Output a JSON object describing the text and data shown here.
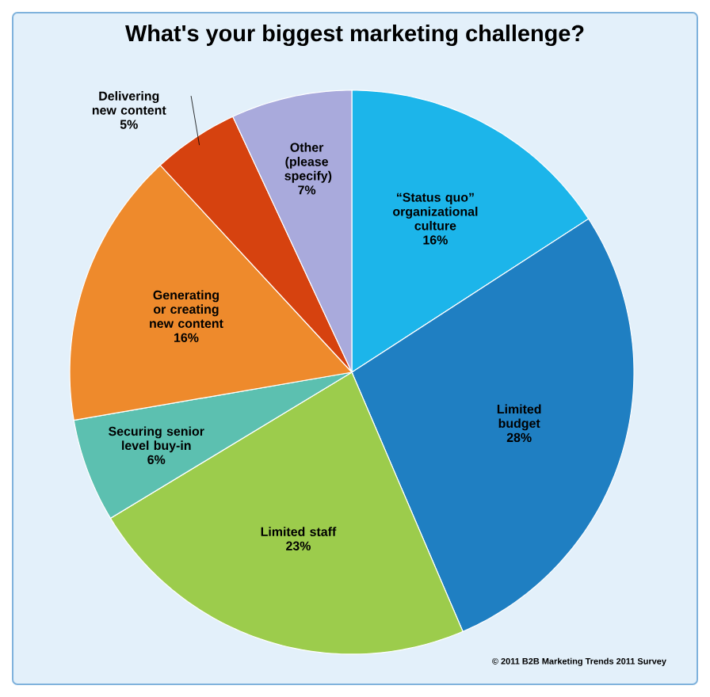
{
  "chart_data": {
    "type": "pie",
    "title": "What's your biggest marketing challenge?",
    "categories": [
      "“Status quo” organizational culture",
      "Limited budget",
      "Limited staff",
      "Securing senior level buy-in",
      "Generating or creating new content",
      "Delivering new content",
      "Other (please specify)"
    ],
    "values": [
      16,
      28,
      23,
      6,
      16,
      5,
      7
    ],
    "value_labels": [
      "16%",
      "28%",
      "23%",
      "6%",
      "16%",
      "5%",
      "7%"
    ],
    "colors": [
      "#1cb5ea",
      "#1f7fc2",
      "#9ccc4c",
      "#5cc0b0",
      "#ee8a2c",
      "#d6420f",
      "#a9aadc"
    ],
    "annotations": [
      "© 2011 B2B Marketing Trends 2011 Survey"
    ]
  }
}
